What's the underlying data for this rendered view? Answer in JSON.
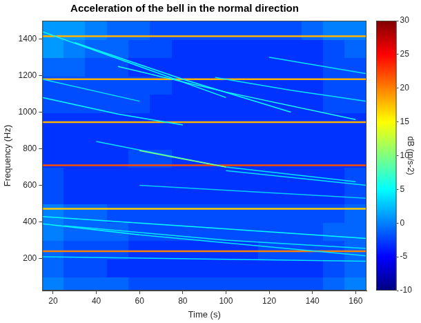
{
  "chart_data": {
    "type": "heatmap",
    "title": "Acceleration of the bell in the normal direction",
    "x_label": "Time (s)",
    "y_label": "Frequency (Hz)",
    "xlim": [
      15,
      165
    ],
    "xticks": [
      20,
      40,
      60,
      80,
      100,
      120,
      140,
      160
    ],
    "ylim": [
      25,
      1500
    ],
    "yticks": [
      200,
      400,
      600,
      800,
      1000,
      1200,
      1400
    ],
    "grid": false,
    "heatmap": {
      "x_edges": [
        15,
        25,
        35,
        45,
        55,
        65,
        75,
        85,
        95,
        105,
        115,
        125,
        135,
        145,
        155,
        165
      ],
      "y_edges": [
        25,
        100,
        200,
        300,
        400,
        500,
        600,
        700,
        800,
        900,
        1000,
        1100,
        1200,
        1300,
        1400,
        1500
      ],
      "values": [
        [
          0,
          -1,
          -1,
          -1,
          -2,
          -2,
          -2,
          -2,
          -2,
          -2,
          -2,
          -2,
          -2,
          -1,
          0
        ],
        [
          -1,
          -2,
          -2,
          -3,
          -3,
          -3,
          -3,
          -3,
          -3,
          -3,
          -3,
          -3,
          -3,
          -2,
          -1
        ],
        [
          -1,
          -2,
          -2,
          -2,
          -3,
          -3,
          -3,
          -3,
          -3,
          -3,
          -2,
          -2,
          -2,
          -2,
          -1
        ],
        [
          0,
          -1,
          -1,
          -1,
          -2,
          -2,
          -2,
          -2,
          -2,
          -2,
          -2,
          -2,
          -2,
          -1,
          -1
        ],
        [
          0,
          -1,
          -1,
          -2,
          -2,
          -2,
          -2,
          -2,
          -2,
          -2,
          -2,
          -2,
          -2,
          -2,
          -1
        ],
        [
          -2,
          -3,
          -3,
          -3,
          -3,
          -3,
          -3,
          -3,
          -3,
          -3,
          -3,
          -3,
          -3,
          -3,
          -2
        ],
        [
          -2,
          -3,
          -3,
          -3,
          -3,
          -3,
          -3,
          -3,
          -3,
          -3,
          -3,
          -3,
          -3,
          -3,
          -2
        ],
        [
          -3,
          -3,
          -3,
          -3,
          -2,
          -2,
          -3,
          -3,
          -3,
          -3,
          -3,
          -3,
          -3,
          -3,
          -3
        ],
        [
          -3,
          -3,
          -3,
          -3,
          -3,
          -3,
          -3,
          -3,
          -3,
          -3,
          -3,
          -3,
          -3,
          -3,
          -3
        ],
        [
          -3,
          -3,
          -3,
          -3,
          -3,
          -3,
          -3,
          -3,
          -3,
          -3,
          -3,
          -3,
          -3,
          -3,
          -3
        ],
        [
          -2,
          -2,
          -2,
          -2,
          -2,
          -3,
          -3,
          -3,
          -3,
          -3,
          -3,
          -3,
          -3,
          -2,
          -2
        ],
        [
          -2,
          -2,
          -2,
          -2,
          -2,
          -2,
          -3,
          -3,
          -3,
          -3,
          -3,
          -3,
          -3,
          -2,
          -2
        ],
        [
          -1,
          -1,
          -2,
          -2,
          -3,
          -3,
          -3,
          -3,
          -3,
          -3,
          -3,
          -3,
          -3,
          -2,
          -2
        ],
        [
          1,
          0,
          -1,
          -1,
          -2,
          -2,
          -3,
          -3,
          -3,
          -3,
          -3,
          -3,
          -3,
          -2,
          -1
        ],
        [
          1,
          1,
          0,
          -1,
          -1,
          -2,
          -2,
          -2,
          -2,
          -2,
          -2,
          -2,
          -1,
          0,
          0
        ]
      ]
    },
    "ridges": [
      {
        "x": [
          15,
          60,
          100
        ],
        "y": [
          1440,
          1250,
          1080
        ],
        "db": 5
      },
      {
        "x": [
          30,
          80,
          130
        ],
        "y": [
          1380,
          1180,
          1000
        ],
        "db": 5
      },
      {
        "x": [
          50,
          100,
          160
        ],
        "y": [
          1250,
          1110,
          960
        ],
        "db": 6
      },
      {
        "x": [
          95,
          130,
          165
        ],
        "y": [
          1190,
          1120,
          1060
        ],
        "db": 4
      },
      {
        "x": [
          15,
          50,
          80
        ],
        "y": [
          1080,
          990,
          930
        ],
        "db": 5
      },
      {
        "x": [
          15,
          60
        ],
        "y": [
          1180,
          1060
        ],
        "db": 4
      },
      {
        "x": [
          120,
          165
        ],
        "y": [
          1300,
          1210
        ],
        "db": 4
      },
      {
        "x": [
          60,
          80,
          100
        ],
        "y": [
          790,
          745,
          700
        ],
        "db": 10
      },
      {
        "x": [
          40,
          100,
          160
        ],
        "y": [
          840,
          700,
          620
        ],
        "db": 4
      },
      {
        "x": [
          100,
          165
        ],
        "y": [
          680,
          600
        ],
        "db": 4
      },
      {
        "x": [
          60,
          165
        ],
        "y": [
          600,
          530
        ],
        "db": 3
      },
      {
        "x": [
          15,
          90,
          165
        ],
        "y": [
          430,
          370,
          310
        ],
        "db": 5
      },
      {
        "x": [
          25,
          100,
          165
        ],
        "y": [
          380,
          300,
          255
        ],
        "db": 4
      },
      {
        "x": [
          15,
          60
        ],
        "y": [
          390,
          330
        ],
        "db": 5
      },
      {
        "x": [
          60,
          165
        ],
        "y": [
          330,
          215
        ],
        "db": 4
      },
      {
        "x": [
          15,
          165
        ],
        "y": [
          210,
          185
        ],
        "db": 4
      },
      {
        "x": [
          15,
          165
        ],
        "y": [
          240,
          240
        ],
        "db": 20
      },
      {
        "x": [
          15,
          165
        ],
        "y": [
          472,
          472
        ],
        "db": 17
      },
      {
        "x": [
          15,
          165
        ],
        "y": [
          710,
          710
        ],
        "db": 22
      },
      {
        "x": [
          15,
          165
        ],
        "y": [
          945,
          945
        ],
        "db": 18
      },
      {
        "x": [
          15,
          165
        ],
        "y": [
          1180,
          1180
        ],
        "db": 18
      },
      {
        "x": [
          15,
          165
        ],
        "y": [
          1415,
          1415
        ],
        "db": 18
      }
    ],
    "colorbar": {
      "label": "dB (m/s-2)",
      "range": [
        -10,
        30
      ],
      "ticks": [
        -10,
        -5,
        0,
        5,
        10,
        15,
        20,
        25,
        30
      ]
    }
  }
}
